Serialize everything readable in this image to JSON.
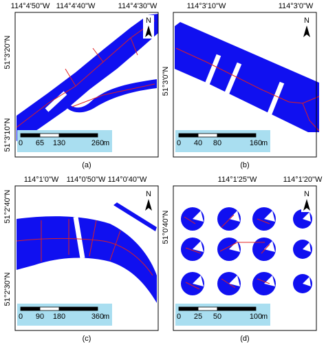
{
  "panels": [
    {
      "label": "(a)",
      "lon_labels": [
        "114°4'50\"W",
        "114°4'40\"W",
        "114°4'30\"W"
      ],
      "lat_labels": [
        "51°3'20\"N",
        "51°3'10\"N"
      ],
      "north": "N",
      "scale_labels": [
        "0",
        "65",
        "130",
        "260"
      ],
      "scale_unit": "m"
    },
    {
      "label": "(b)",
      "lon_labels": [
        "114°3'10\"W",
        "114°3'0\"W"
      ],
      "lat_labels": [
        "51°3'0\"N"
      ],
      "north": "N",
      "scale_labels": [
        "0",
        "40",
        "80",
        "160"
      ],
      "scale_unit": "m"
    },
    {
      "label": "(c)",
      "lon_labels": [
        "114°1'0\"W",
        "114°0'50\"W",
        "114°0'40\"W"
      ],
      "lat_labels": [
        "51°2'40\"N",
        "51°2'30\"N"
      ],
      "north": "N",
      "scale_labels": [
        "0",
        "90",
        "180",
        "360"
      ],
      "scale_unit": "m"
    },
    {
      "label": "(d)",
      "lon_labels": [
        "114°1'25\"W",
        "114°1'20\"W"
      ],
      "lat_labels": [
        "51°0'40\"N"
      ],
      "north": "N",
      "scale_labels": [
        "0",
        "25",
        "50",
        "100"
      ],
      "scale_unit": "m"
    }
  ]
}
